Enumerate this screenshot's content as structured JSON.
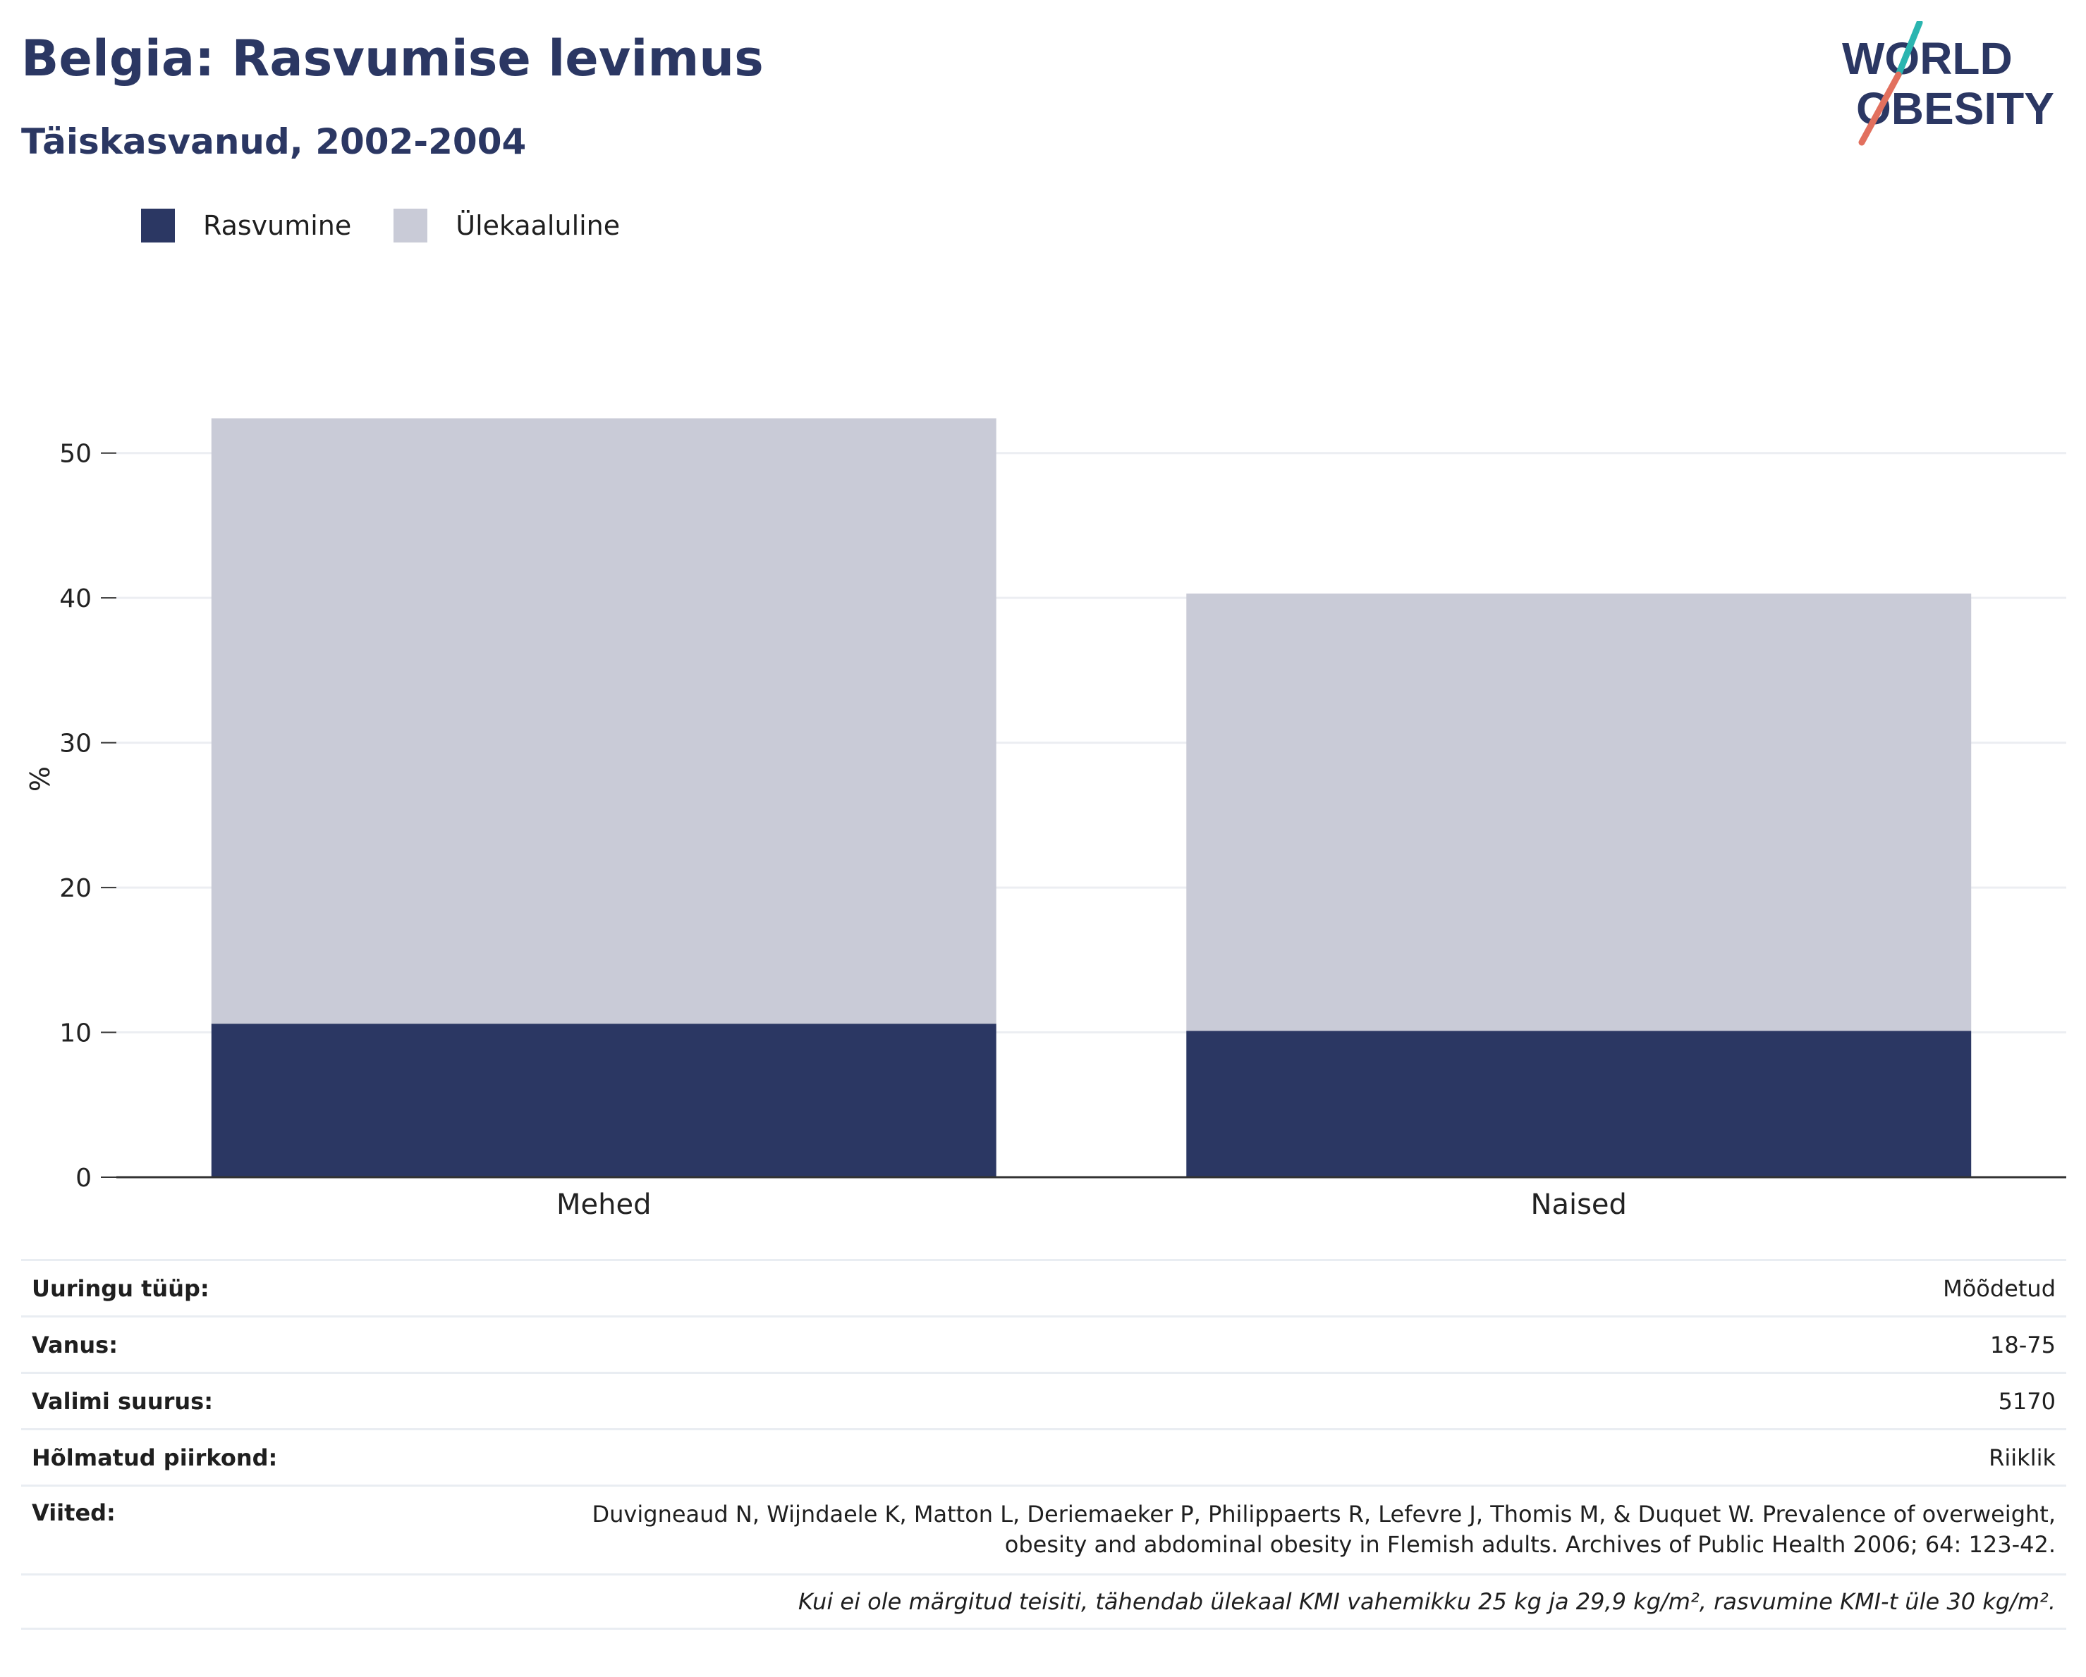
{
  "title": "Belgia: Rasvumise levimus",
  "subtitle": "Täiskasvanud, 2002-2004",
  "logo": {
    "line1": "WORLD",
    "line2": "OBESITY",
    "accent_teal": "#2bb5b0",
    "accent_coral": "#e2705e",
    "text_color": "#2b3763"
  },
  "colors": {
    "rasvumine": "#2b3763",
    "ulekaaluline": "#c9cbd7",
    "grid": "#eceef2",
    "axis": "#333333"
  },
  "chart_data": {
    "type": "bar",
    "stacked": true,
    "categories": [
      "Mehed",
      "Naised"
    ],
    "series": [
      {
        "name": "Rasvumine",
        "values": [
          10.6,
          10.1
        ],
        "color": "#2b3763"
      },
      {
        "name": "Ülekaaluline",
        "values": [
          41.8,
          30.2
        ],
        "color": "#c9cbd7"
      }
    ],
    "ylabel": "%",
    "ylim": [
      0,
      55
    ],
    "yticks": [
      0,
      10,
      20,
      30,
      40,
      50
    ],
    "grid": true,
    "legend_position": "top-left"
  },
  "meta": {
    "survey_type_label": "Uuringu tüüp:",
    "survey_type_value": "Mõõdetud",
    "age_label": "Vanus:",
    "age_value": "18-75",
    "sample_label": "Valimi suurus:",
    "sample_value": "5170",
    "region_label": "Hõlmatud piirkond:",
    "region_value": "Riiklik",
    "refs_label": "Viited:",
    "refs_line1": "Duvigneaud N, Wijndaele K, Matton L, Deriemaeker P, Philippaerts R, Lefevre J, Thomis M, & Duquet W. Prevalence of overweight,",
    "refs_line2": "obesity and abdominal obesity in Flemish adults. Archives of Public Health 2006; 64: 123-42.",
    "note": "Kui ei ole märgitud teisiti, tähendab ülekaal KMI vahemikku 25 kg ja 29,9 kg/m², rasvumine KMI-t üle 30 kg/m²."
  }
}
